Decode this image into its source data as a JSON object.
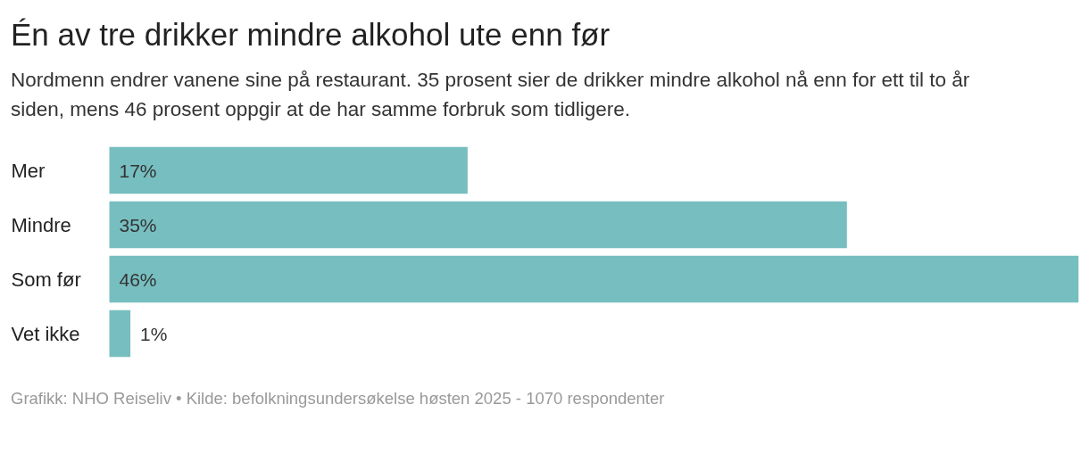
{
  "chart_data": {
    "type": "bar",
    "orientation": "horizontal",
    "title": "Én av tre drikker mindre alkohol ute enn før",
    "subtitle": "Nordmenn endrer vanene sine på restaurant. 35 prosent sier de drikker mindre alkohol nå enn for ett til to år siden, mens 46 prosent oppgir at de har samme forbruk som tidligere.",
    "categories": [
      "Mer",
      "Mindre",
      "Som før",
      "Vet ikke"
    ],
    "values": [
      17,
      35,
      46,
      1
    ],
    "value_labels": [
      "17%",
      "35%",
      "46%",
      "1%"
    ],
    "color": "#77bec0",
    "grid": false,
    "annotations": [
      "Grafikk: NHO Reiseliv • Kilde: befolkningsundersøkelse høsten 2025 - 1070 respondenter"
    ]
  }
}
